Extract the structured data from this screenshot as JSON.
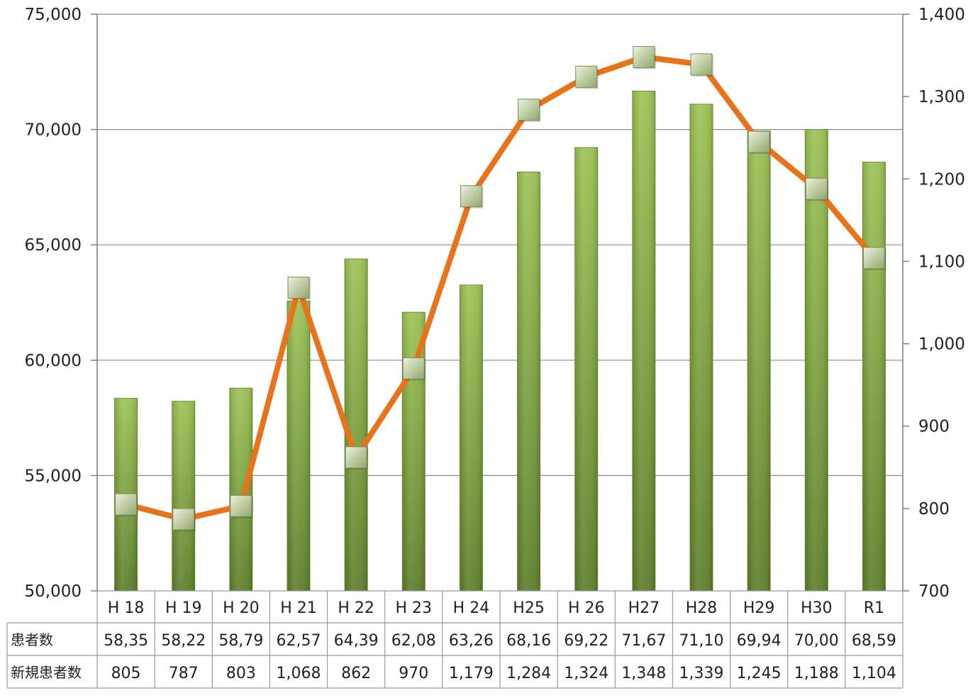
{
  "chart_data": {
    "type": "bar",
    "categories": [
      "H18",
      "H19",
      "H20",
      "H21",
      "H22",
      "H23",
      "H24",
      "H25",
      "H26",
      "H27",
      "H28",
      "H29",
      "H30",
      "R1"
    ],
    "category_labels": [
      "H 18",
      "H 19",
      "H 20",
      "H 21",
      "H 22",
      "H 23",
      "H 24",
      "H25",
      "H 26",
      "H27",
      "H28",
      "H29",
      "H30",
      "R1"
    ],
    "series": [
      {
        "name": "患者数",
        "type": "bar",
        "axis": "left",
        "values": [
          58350,
          58220,
          58790,
          62570,
          64390,
          62080,
          63260,
          68160,
          69220,
          71670,
          71100,
          69940,
          70000,
          68590
        ],
        "table_values": [
          "58,35",
          "58,22",
          "58,79",
          "62,57",
          "64,39",
          "62,08",
          "63,26",
          "68,16",
          "69,22",
          "71,67",
          "71,10",
          "69,94",
          "70,00",
          "68,59"
        ]
      },
      {
        "name": "新規患者数",
        "type": "line",
        "axis": "right",
        "values": [
          805,
          787,
          803,
          1068,
          862,
          970,
          1179,
          1284,
          1324,
          1348,
          1339,
          1245,
          1188,
          1104
        ],
        "table_values": [
          "805",
          "787",
          "803",
          "1,068",
          "862",
          "970",
          "1,179",
          "1,284",
          "1,324",
          "1,348",
          "1,339",
          "1,245",
          "1,188",
          "1,104"
        ]
      }
    ],
    "y_left": {
      "range": [
        50000,
        75000
      ],
      "ticks": [
        50000,
        55000,
        60000,
        65000,
        70000,
        75000
      ],
      "tick_labels": [
        "50,000",
        "55,000",
        "60,000",
        "65,000",
        "70,000",
        "75,000"
      ]
    },
    "y_right": {
      "range": [
        700,
        1400
      ],
      "ticks": [
        700,
        800,
        900,
        1000,
        1100,
        1200,
        1300,
        1400
      ],
      "tick_labels": [
        "700",
        "800",
        "900",
        "1,000",
        "1,100",
        "1,200",
        "1,300",
        "1,400"
      ]
    },
    "grid": true,
    "legend": "data-table",
    "colors": {
      "bar_light": "#9cc254",
      "bar_dark": "#5e7e2a",
      "line": "#e8731a",
      "marker_light": "#dfe9c8",
      "marker_dark": "#8fa66a",
      "grid": "#8c8c8c"
    }
  }
}
